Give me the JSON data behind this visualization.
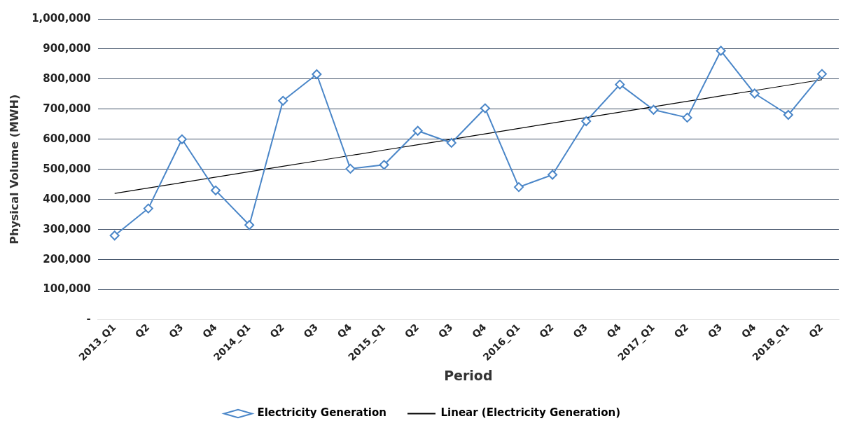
{
  "chart_data": {
    "type": "line",
    "xlabel": "Period",
    "ylabel": "Physical Volume (MWH)",
    "categories": [
      "2013_Q1",
      "Q2",
      "Q3",
      "Q4",
      "2014_Q1",
      "Q2",
      "Q3",
      "Q4",
      "2015_Q1",
      "Q2",
      "Q3",
      "Q4",
      "2016_Q1",
      "Q2",
      "Q3",
      "Q4",
      "2017_Q1",
      "Q2",
      "Q3",
      "Q4",
      "2018_Q1",
      "Q2"
    ],
    "series": [
      {
        "name": "Electricity Generation",
        "color": "#4a86c8",
        "marker": "diamond",
        "values": [
          280000,
          370000,
          600000,
          430000,
          315000,
          728000,
          816000,
          502000,
          515000,
          628000,
          588000,
          703000,
          441000,
          482000,
          660000,
          782000,
          698000,
          672000,
          894000,
          752000,
          681000,
          817000
        ]
      },
      {
        "name": "Linear (Electricity Generation)",
        "color": "#000000",
        "marker": "none",
        "values": [
          420000,
          438000,
          456000,
          474000,
          492000,
          510000,
          528000,
          546000,
          564000,
          582000,
          600000,
          618000,
          636000,
          654000,
          672000,
          690000,
          708000,
          726000,
          744000,
          762000,
          780000,
          798000
        ]
      }
    ],
    "ylim": [
      0,
      1000000
    ],
    "yticks": [
      {
        "value": 0,
        "label": "-"
      },
      {
        "value": 100000,
        "label": "100,000"
      },
      {
        "value": 200000,
        "label": "200,000"
      },
      {
        "value": 300000,
        "label": "300,000"
      },
      {
        "value": 400000,
        "label": "400,000"
      },
      {
        "value": 500000,
        "label": "500,000"
      },
      {
        "value": 600000,
        "label": "600,000"
      },
      {
        "value": 700000,
        "label": "700,000"
      },
      {
        "value": 800000,
        "label": "800,000"
      },
      {
        "value": 900000,
        "label": "900,000"
      },
      {
        "value": 1000000,
        "label": "1,000,000"
      }
    ],
    "grid": "y",
    "legend": "bottom"
  }
}
